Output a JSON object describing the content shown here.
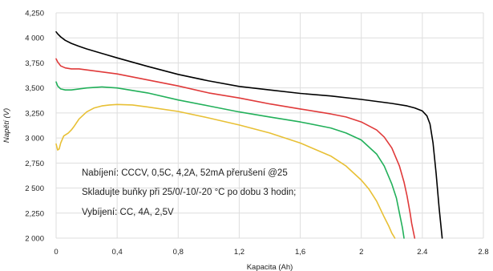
{
  "chart_data": {
    "type": "line",
    "title": "",
    "xlabel": "Kapacita (Ah)",
    "ylabel": "Napětí (V)",
    "xlim": [
      0,
      2.8
    ],
    "ylim": [
      2000,
      4250
    ],
    "x_ticks": [
      0,
      0.4,
      0.8,
      1.2,
      1.6,
      2,
      2.4,
      2.8
    ],
    "x_tick_labels": [
      "0",
      "0,4",
      "0,8",
      "1,2",
      "1,6",
      "2",
      "2.4",
      "2.8"
    ],
    "y_ticks": [
      2000,
      2250,
      2500,
      2750,
      3000,
      3250,
      3500,
      3750,
      4000,
      4250
    ],
    "y_tick_labels": [
      "2 000",
      "2,250",
      "2 500",
      "2,750",
      "3 000",
      "3,250",
      "3,500",
      "3,750",
      "4 000",
      "4,250"
    ],
    "grid": true,
    "annotations": [
      "Nabíjení: CCCV, 0,5C, 4,2A, 52mA přerušení @25",
      "Skladujte buňky při 25/0/-10/-20 °C po dobu 3 hodin;",
      "Vybíjení: CC, 4A, 2,5V"
    ],
    "series": [
      {
        "color": "#000000",
        "x": [
          0,
          0.01,
          0.03,
          0.06,
          0.1,
          0.15,
          0.2,
          0.3,
          0.4,
          0.6,
          0.8,
          1.0,
          1.2,
          1.4,
          1.6,
          1.8,
          2.0,
          2.1,
          2.2,
          2.3,
          2.35,
          2.4,
          2.43,
          2.45,
          2.47,
          2.49,
          2.51,
          2.53
        ],
        "values": [
          4060,
          4040,
          4010,
          3975,
          3945,
          3915,
          3890,
          3845,
          3800,
          3715,
          3635,
          3570,
          3515,
          3480,
          3445,
          3420,
          3385,
          3365,
          3345,
          3320,
          3300,
          3270,
          3220,
          3140,
          2950,
          2650,
          2300,
          2000
        ]
      },
      {
        "color": "#e03a3a",
        "x": [
          0,
          0.01,
          0.03,
          0.06,
          0.1,
          0.15,
          0.2,
          0.3,
          0.4,
          0.6,
          0.8,
          1.0,
          1.2,
          1.4,
          1.6,
          1.8,
          1.9,
          2.0,
          2.1,
          2.15,
          2.2,
          2.25,
          2.28,
          2.3,
          2.32,
          2.33,
          2.35
        ],
        "values": [
          3790,
          3760,
          3720,
          3700,
          3690,
          3690,
          3680,
          3660,
          3640,
          3580,
          3520,
          3450,
          3400,
          3340,
          3290,
          3240,
          3210,
          3160,
          3080,
          3010,
          2900,
          2720,
          2560,
          2420,
          2250,
          2150,
          2000
        ]
      },
      {
        "color": "#22b05a",
        "x": [
          0,
          0.01,
          0.03,
          0.06,
          0.1,
          0.15,
          0.2,
          0.3,
          0.4,
          0.6,
          0.8,
          1.0,
          1.2,
          1.4,
          1.6,
          1.8,
          1.9,
          2.0,
          2.1,
          2.15,
          2.2,
          2.23,
          2.25,
          2.27,
          2.28
        ],
        "values": [
          3560,
          3520,
          3490,
          3480,
          3480,
          3490,
          3500,
          3510,
          3500,
          3450,
          3380,
          3320,
          3260,
          3210,
          3160,
          3100,
          3050,
          2980,
          2840,
          2720,
          2540,
          2400,
          2250,
          2100,
          2000
        ]
      },
      {
        "color": "#e8c035",
        "x": [
          0,
          0.01,
          0.02,
          0.03,
          0.05,
          0.08,
          0.1,
          0.12,
          0.15,
          0.2,
          0.25,
          0.3,
          0.35,
          0.4,
          0.5,
          0.6,
          0.8,
          1.0,
          1.2,
          1.4,
          1.6,
          1.8,
          1.9,
          2.0,
          2.05,
          2.1,
          2.15,
          2.18,
          2.2,
          2.22
        ],
        "values": [
          2940,
          2880,
          2890,
          2950,
          3020,
          3050,
          3080,
          3120,
          3190,
          3260,
          3300,
          3320,
          3330,
          3335,
          3330,
          3310,
          3265,
          3200,
          3130,
          3050,
          2950,
          2820,
          2720,
          2580,
          2490,
          2370,
          2210,
          2120,
          2050,
          2000
        ]
      }
    ]
  }
}
